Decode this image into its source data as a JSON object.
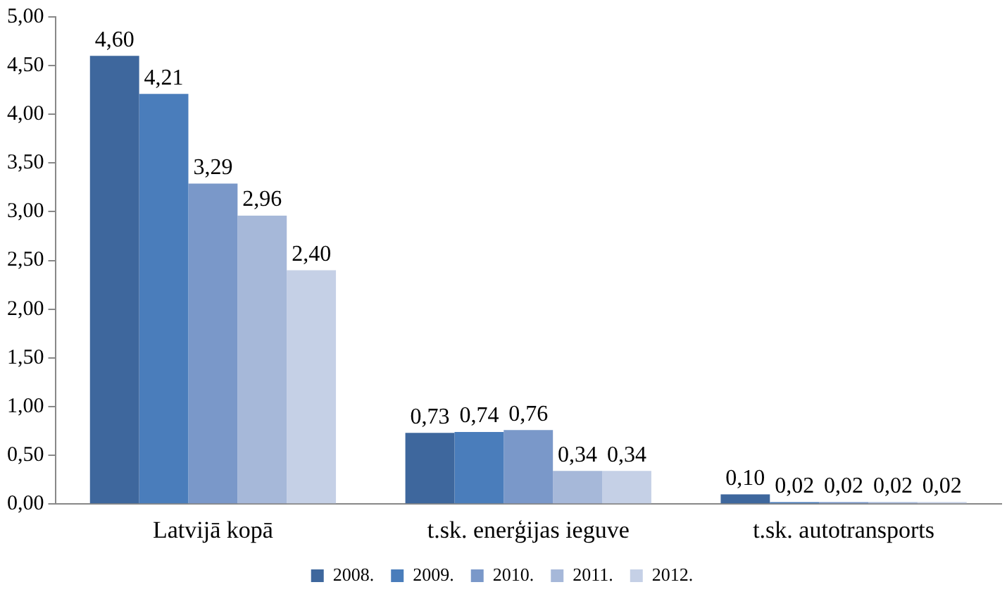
{
  "chart_data": {
    "type": "bar",
    "categories": [
      "Latvijā kopā",
      "t.sk. enerģijas ieguve",
      "t.sk. autotransports"
    ],
    "series": [
      {
        "name": "2008.",
        "color": "#3e679d",
        "values": [
          4.6,
          0.73,
          0.1
        ],
        "value_labels": [
          "4,60",
          "0,73",
          "0,10"
        ]
      },
      {
        "name": "2009.",
        "color": "#4a7dbb",
        "values": [
          4.21,
          0.74,
          0.02
        ],
        "value_labels": [
          "4,21",
          "0,74",
          "0,02"
        ]
      },
      {
        "name": "2010.",
        "color": "#7a98c9",
        "values": [
          3.29,
          0.76,
          0.02
        ],
        "value_labels": [
          "3,29",
          "0,76",
          "0,02"
        ]
      },
      {
        "name": "2011.",
        "color": "#a6b8d9",
        "values": [
          2.96,
          0.34,
          0.02
        ],
        "value_labels": [
          "2,96",
          "0,34",
          "0,02"
        ]
      },
      {
        "name": "2012.",
        "color": "#c5d0e6",
        "values": [
          2.4,
          0.34,
          0.02
        ],
        "value_labels": [
          "2,40",
          "0,34",
          "0,02"
        ]
      }
    ],
    "ylim": [
      0,
      5
    ],
    "yticks": [
      {
        "value": 0,
        "label": "0,00"
      },
      {
        "value": 0.5,
        "label": "0,50"
      },
      {
        "value": 1,
        "label": "1,00"
      },
      {
        "value": 1.5,
        "label": "1,50"
      },
      {
        "value": 2,
        "label": "2,00"
      },
      {
        "value": 2.5,
        "label": "2,50"
      },
      {
        "value": 3,
        "label": "3,00"
      },
      {
        "value": 3.5,
        "label": "3,50"
      },
      {
        "value": 4,
        "label": "4,00"
      },
      {
        "value": 4.5,
        "label": "4,50"
      },
      {
        "value": 5,
        "label": "5,00"
      }
    ],
    "grid": false,
    "legend": "bottom"
  }
}
